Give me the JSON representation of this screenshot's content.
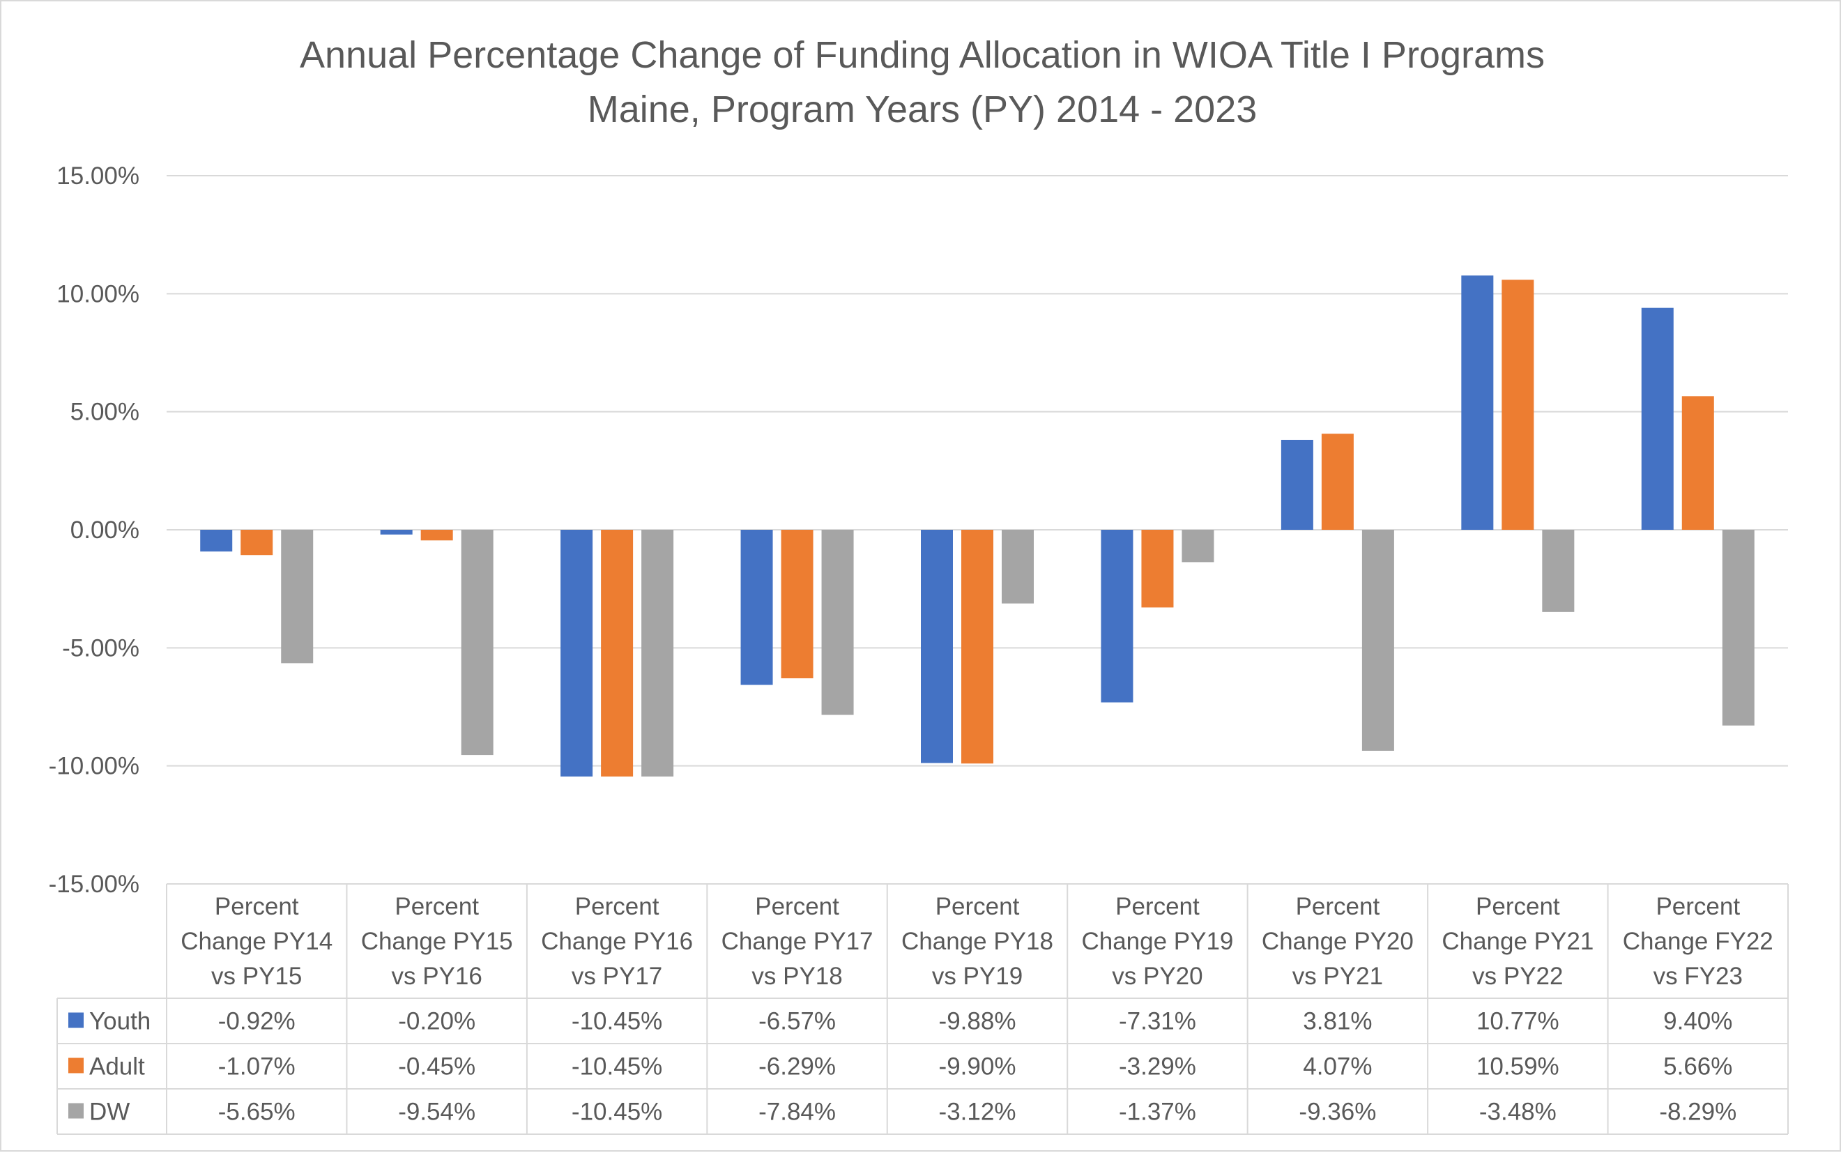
{
  "chart_data": {
    "type": "bar",
    "title_lines": [
      "Annual Percentage Change of Funding Allocation in WIOA Title I Programs",
      "Maine, Program Years (PY) 2014 - 2023"
    ],
    "categories": [
      [
        "Percent",
        "Change PY14",
        "vs PY15"
      ],
      [
        "Percent",
        "Change PY15",
        "vs PY16"
      ],
      [
        "Percent",
        "Change PY16",
        "vs PY17"
      ],
      [
        "Percent",
        "Change PY17",
        "vs PY18"
      ],
      [
        "Percent",
        "Change PY18",
        "vs PY19"
      ],
      [
        "Percent",
        "Change PY19",
        "vs PY20"
      ],
      [
        "Percent",
        "Change PY20",
        "vs PY21"
      ],
      [
        "Percent",
        "Change PY21",
        "vs PY22"
      ],
      [
        "Percent",
        "Change FY22",
        "vs FY23"
      ]
    ],
    "series": [
      {
        "name": "Youth",
        "color": "#4472C4",
        "values": [
          -0.92,
          -0.2,
          -10.45,
          -6.57,
          -9.88,
          -7.31,
          3.81,
          10.77,
          9.4
        ],
        "labels": [
          "-0.92%",
          "-0.20%",
          "-10.45%",
          "-6.57%",
          "-9.88%",
          "-7.31%",
          "3.81%",
          "10.77%",
          "9.40%"
        ]
      },
      {
        "name": "Adult",
        "color": "#ED7D31",
        "values": [
          -1.07,
          -0.45,
          -10.45,
          -6.29,
          -9.9,
          -3.29,
          4.07,
          10.59,
          5.66
        ],
        "labels": [
          "-1.07%",
          "-0.45%",
          "-10.45%",
          "-6.29%",
          "-9.90%",
          "-3.29%",
          "4.07%",
          "10.59%",
          "5.66%"
        ]
      },
      {
        "name": "DW",
        "color": "#A5A5A5",
        "values": [
          -5.65,
          -9.54,
          -10.45,
          -7.84,
          -3.12,
          -1.37,
          -9.36,
          -3.48,
          -8.29
        ],
        "labels": [
          "-5.65%",
          "-9.54%",
          "-10.45%",
          "-7.84%",
          "-3.12%",
          "-1.37%",
          "-9.36%",
          "-3.48%",
          "-8.29%"
        ]
      }
    ],
    "y_ticks": [
      15,
      10,
      5,
      0,
      -5,
      -10,
      -15
    ],
    "y_tick_labels": [
      "15.00%",
      "10.00%",
      "5.00%",
      "0.00%",
      "-5.00%",
      "-10.00%",
      "-15.00%"
    ],
    "ylim": [
      -15,
      15
    ],
    "grid": true,
    "legend": "data table below chart",
    "gridline_color": "#d9d9d9",
    "text_color": "#595959"
  }
}
